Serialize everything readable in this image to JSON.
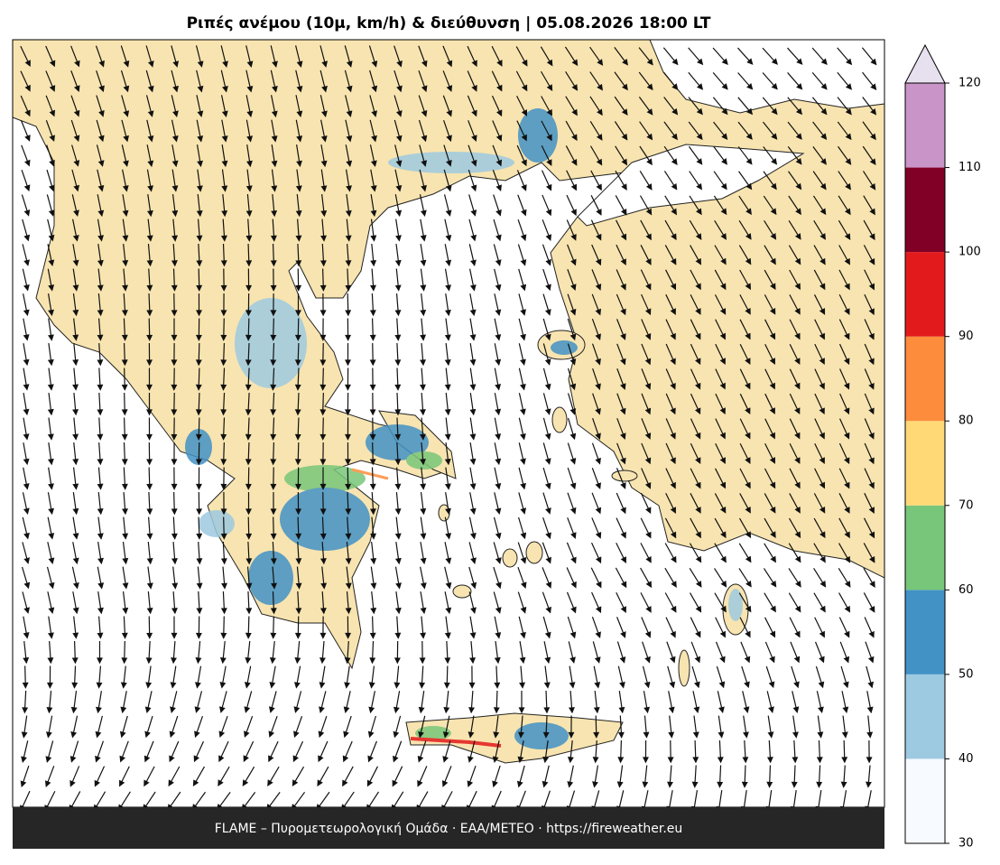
{
  "title": "Ριπές ανέμου (10μ, km/h) & διεύθυνση  |  05.08.2026 18:00 LT",
  "footer": "FLAME – Πυρομετεωρολογική Ομάδα · ΕΑΑ/METEO · https://fireweather.eu",
  "colorbar": {
    "ticks": [
      30,
      40,
      50,
      60,
      70,
      80,
      90,
      100,
      110,
      120
    ],
    "colors": [
      "#f7fbff",
      "#9ecae1",
      "#4292c6",
      "#78c679",
      "#fed976",
      "#fd8d3c",
      "#e31a1c",
      "#800026",
      "#c994c7"
    ],
    "extend_color": "#e7e1ef"
  }
}
